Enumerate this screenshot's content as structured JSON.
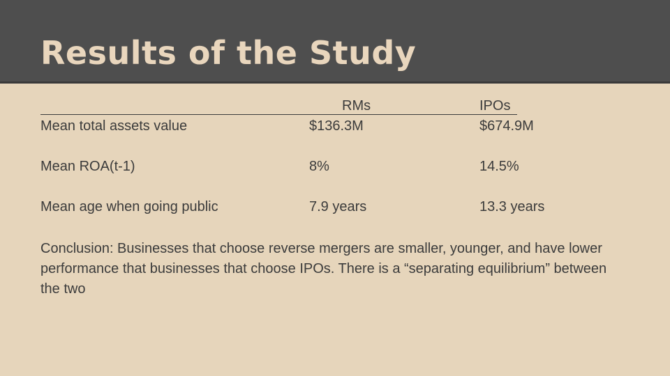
{
  "slide": {
    "title": "Results of the Study"
  },
  "table": {
    "headers": [
      "",
      "RMs",
      "IPOs"
    ],
    "rows": [
      {
        "label": "Mean total assets value",
        "rm": "$136.3M",
        "ipo": "$674.9M"
      },
      {
        "label": "Mean ROA(t-1)",
        "rm": "8%",
        "ipo": "14.5%"
      },
      {
        "label": "Mean age when going public",
        "rm": "7.9 years",
        "ipo": "13.3 years"
      }
    ]
  },
  "conclusion": "Conclusion: Businesses that choose reverse mergers are smaller, younger, and have lower performance that businesses that choose IPOs. There is a “separating equilibrium” between the two",
  "colors": {
    "header_bg": "#4e4e4e",
    "title": "#e9d6bd",
    "background": "#e6d5bb",
    "text": "#3b3b3b"
  }
}
